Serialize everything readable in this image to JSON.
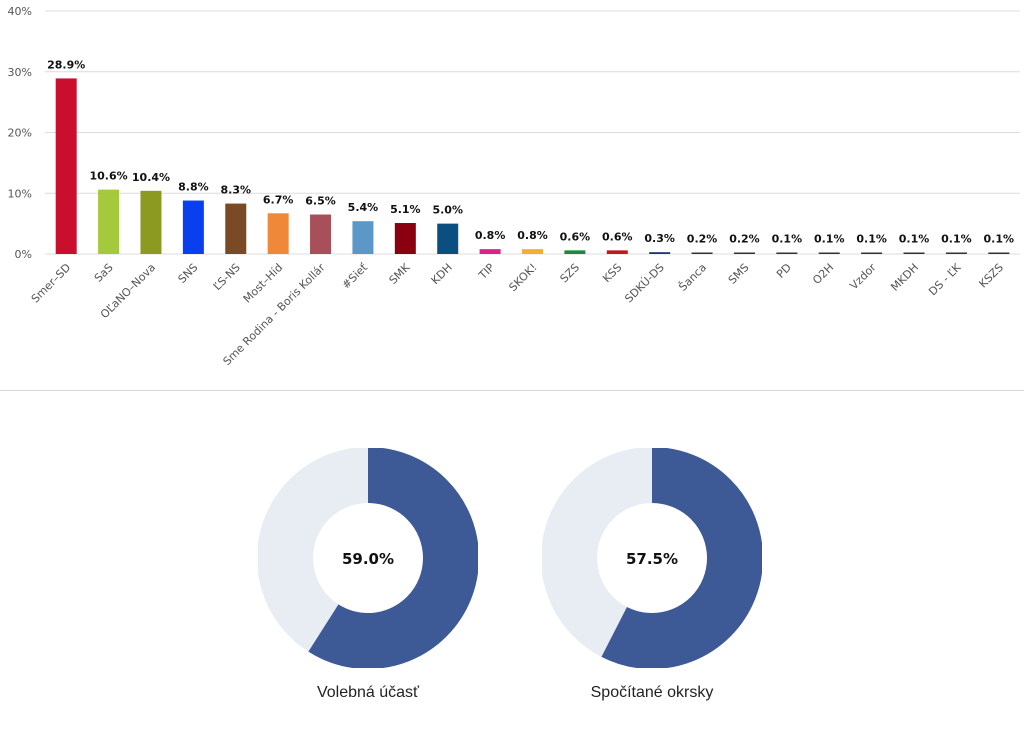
{
  "chart_data": [
    {
      "type": "bar",
      "title": "",
      "xlabel": "",
      "ylabel": "",
      "ylim": [
        0,
        40
      ],
      "yticks": [
        "0%",
        "10%",
        "20%",
        "30%",
        "40%"
      ],
      "grid": true,
      "categories": [
        "Smer–SD",
        "SaS",
        "OĽaNO–Nova",
        "SNS",
        "ĽS-NS",
        "Most–Híd",
        "Sme Rodina - Boris Kollár",
        "#Sieť",
        "SMK",
        "KDH",
        "TIP",
        "SKOK!",
        "SZS",
        "KSS",
        "SDKÚ-DS",
        "Šanca",
        "SMS",
        "PD",
        "O2H",
        "Vzdor",
        "MKDH",
        "DS - ĽK",
        "KSZS"
      ],
      "values": [
        28.9,
        10.6,
        10.4,
        8.8,
        8.3,
        6.7,
        6.5,
        5.4,
        5.1,
        5.0,
        0.8,
        0.8,
        0.6,
        0.6,
        0.3,
        0.2,
        0.2,
        0.1,
        0.1,
        0.1,
        0.1,
        0.1,
        0.1
      ],
      "value_labels": [
        "28.9%",
        "10.6%",
        "10.4%",
        "8.8%",
        "8.3%",
        "6.7%",
        "6.5%",
        "5.4%",
        "5.1%",
        "5.0%",
        "0.8%",
        "0.8%",
        "0.6%",
        "0.6%",
        "0.3%",
        "0.2%",
        "0.2%",
        "0.1%",
        "0.1%",
        "0.1%",
        "0.1%",
        "0.1%",
        "0.1%"
      ],
      "colors": [
        "#c8102e",
        "#a4c93c",
        "#8c9a22",
        "#0a3ff0",
        "#7a4a24",
        "#f0883a",
        "#a8505a",
        "#5b98c8",
        "#8a0010",
        "#0a4f80",
        "#e0208a",
        "#f0b030",
        "#1a8a40",
        "#c01820",
        "#1a3a70",
        "#333333",
        "#333333",
        "#333333",
        "#333333",
        "#333333",
        "#333333",
        "#333333",
        "#333333"
      ]
    },
    {
      "type": "pie",
      "title": "Volebná účasť",
      "center_label": "59.0%",
      "value": 59.0,
      "colors": [
        "#3d5a96",
        "#e8ecf3"
      ]
    },
    {
      "type": "pie",
      "title": "Spočítané okrsky",
      "center_label": "57.5%",
      "value": 57.5,
      "colors": [
        "#3d5a96",
        "#e8ecf3"
      ]
    }
  ]
}
